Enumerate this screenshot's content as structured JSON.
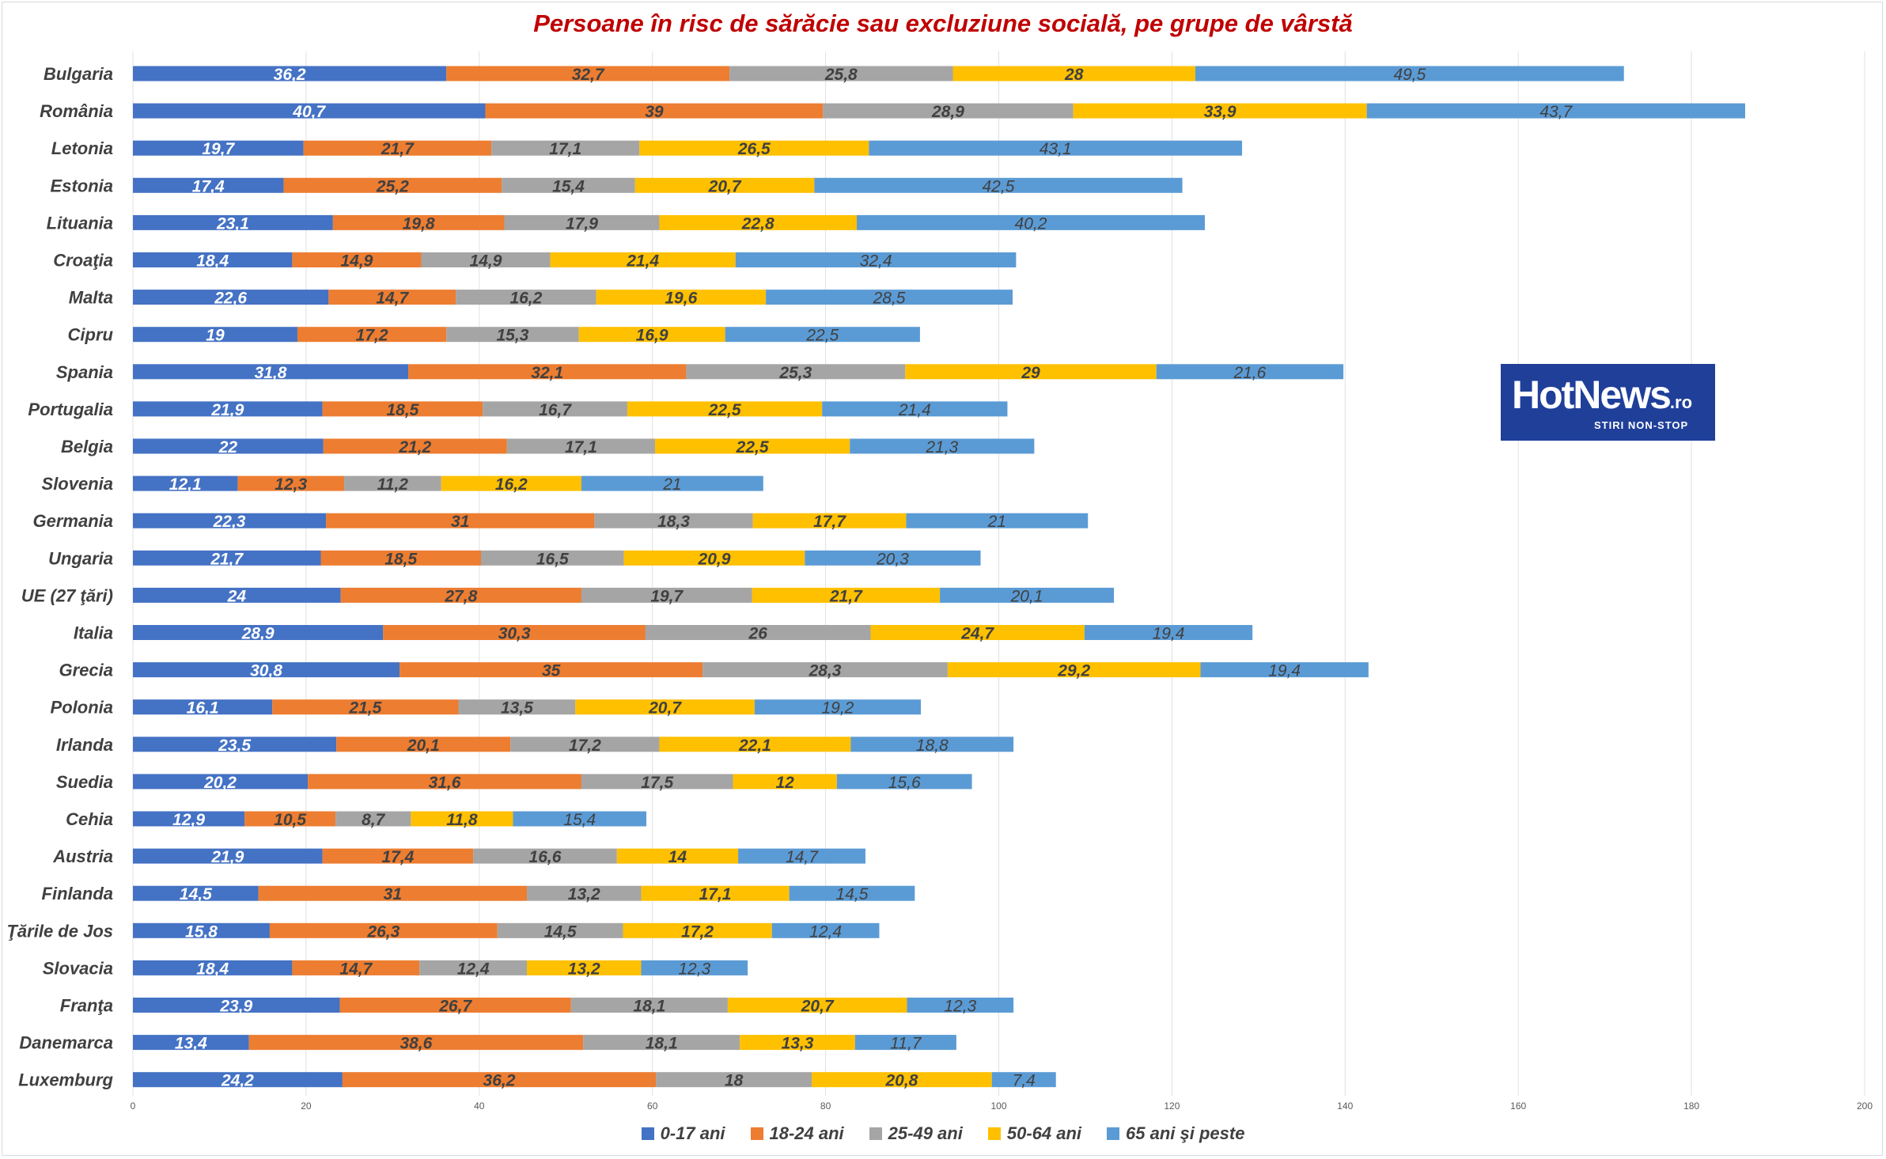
{
  "chart_data": {
    "type": "bar",
    "orientation": "horizontal",
    "stacked": true,
    "title": "Persoane în risc de sărăcie sau excluziune socială, pe grupe de vârstă",
    "xlim": [
      0,
      200
    ],
    "x_ticks": [
      "0",
      "20",
      "40",
      "60",
      "80",
      "100",
      "120",
      "140",
      "160",
      "180",
      "200"
    ],
    "grid": true,
    "legend_position": "bottom",
    "categories": [
      "Bulgaria",
      "România",
      "Letonia",
      "Estonia",
      "Lituania",
      "Croaţia",
      "Malta",
      "Cipru",
      "Spania",
      "Portugalia",
      "Belgia",
      "Slovenia",
      "Germania",
      "Ungaria",
      "UE (27 ţări)",
      "Italia",
      "Grecia",
      "Polonia",
      "Irlanda",
      "Suedia",
      "Cehia",
      "Austria",
      "Finlanda",
      "Ţările de Jos",
      "Slovacia",
      "Franţa",
      "Danemarca",
      "Luxemburg"
    ],
    "series": [
      {
        "name": "0-17 ani",
        "color": "#4472c4",
        "label_color": "#ffffff",
        "values": [
          36.2,
          40.7,
          19.7,
          17.4,
          23.1,
          18.4,
          22.6,
          19,
          31.8,
          21.9,
          22,
          12.1,
          22.3,
          21.7,
          24,
          28.9,
          30.8,
          16.1,
          23.5,
          20.2,
          12.9,
          21.9,
          14.5,
          15.8,
          18.4,
          23.9,
          13.4,
          24.2
        ],
        "labels": [
          "36,2",
          "40,7",
          "19,7",
          "17,4",
          "23,1",
          "18,4",
          "22,6",
          "19",
          "31,8",
          "21,9",
          "22",
          "12,1",
          "22,3",
          "21,7",
          "24",
          "28,9",
          "30,8",
          "16,1",
          "23,5",
          "20,2",
          "12,9",
          "21,9",
          "14,5",
          "15,8",
          "18,4",
          "23,9",
          "13,4",
          "24,2"
        ]
      },
      {
        "name": "18-24 ani",
        "color": "#ed7d31",
        "label_color": "#404040",
        "values": [
          32.7,
          39,
          21.7,
          25.2,
          19.8,
          14.9,
          14.7,
          17.2,
          32.1,
          18.5,
          21.2,
          12.3,
          31,
          18.5,
          27.8,
          30.3,
          35,
          21.5,
          20.1,
          31.6,
          10.5,
          17.4,
          31,
          26.3,
          14.7,
          26.7,
          38.6,
          36.2
        ],
        "labels": [
          "32,7",
          "39",
          "21,7",
          "25,2",
          "19,8",
          "14,9",
          "14,7",
          "17,2",
          "32,1",
          "18,5",
          "21,2",
          "12,3",
          "31",
          "18,5",
          "27,8",
          "30,3",
          "35",
          "21,5",
          "20,1",
          "31,6",
          "10,5",
          "17,4",
          "31",
          "26,3",
          "14,7",
          "26,7",
          "38,6",
          "36,2"
        ]
      },
      {
        "name": "25-49 ani",
        "color": "#a5a5a5",
        "label_color": "#404040",
        "values": [
          25.8,
          28.9,
          17.1,
          15.4,
          17.9,
          14.9,
          16.2,
          15.3,
          25.3,
          16.7,
          17.1,
          11.2,
          18.3,
          16.5,
          19.7,
          26,
          28.3,
          13.5,
          17.2,
          17.5,
          8.7,
          16.6,
          13.2,
          14.5,
          12.4,
          18.1,
          18.1,
          18
        ],
        "labels": [
          "25,8",
          "28,9",
          "17,1",
          "15,4",
          "17,9",
          "14,9",
          "16,2",
          "15,3",
          "25,3",
          "16,7",
          "17,1",
          "11,2",
          "18,3",
          "16,5",
          "19,7",
          "26",
          "28,3",
          "13,5",
          "17,2",
          "17,5",
          "8,7",
          "16,6",
          "13,2",
          "14,5",
          "12,4",
          "18,1",
          "18,1",
          "18"
        ]
      },
      {
        "name": "50-64 ani",
        "color": "#ffc000",
        "label_color": "#404040",
        "values": [
          28,
          33.9,
          26.5,
          20.7,
          22.8,
          21.4,
          19.6,
          16.9,
          29,
          22.5,
          22.5,
          16.2,
          17.7,
          20.9,
          21.7,
          24.7,
          29.2,
          20.7,
          22.1,
          12,
          11.8,
          14,
          17.1,
          17.2,
          13.2,
          20.7,
          13.3,
          20.8
        ],
        "labels": [
          "28",
          "33,9",
          "26,5",
          "20,7",
          "22,8",
          "21,4",
          "19,6",
          "16,9",
          "29",
          "22,5",
          "22,5",
          "16,2",
          "17,7",
          "20,9",
          "21,7",
          "24,7",
          "29,2",
          "20,7",
          "22,1",
          "12",
          "11,8",
          "14",
          "17,1",
          "17,2",
          "13,2",
          "20,7",
          "13,3",
          "20,8"
        ]
      },
      {
        "name": "65 ani şi peste",
        "color": "#5b9bd5",
        "label_color": "#404040",
        "values": [
          49.5,
          43.7,
          43.1,
          42.5,
          40.2,
          32.4,
          28.5,
          22.5,
          21.6,
          21.4,
          21.3,
          21,
          21,
          20.3,
          20.1,
          19.4,
          19.4,
          19.2,
          18.8,
          15.6,
          15.4,
          14.7,
          14.5,
          12.4,
          12.3,
          12.3,
          11.7,
          7.4
        ],
        "labels": [
          "49,5",
          "43,7",
          "43,1",
          "42,5",
          "40,2",
          "32,4",
          "28,5",
          "22,5",
          "21,6",
          "21,4",
          "21,3",
          "21",
          "21",
          "20,3",
          "20,1",
          "19,4",
          "19,4",
          "19,2",
          "18,8",
          "15,6",
          "15,4",
          "14,7",
          "14,5",
          "12,4",
          "12,3",
          "12,3",
          "11,7",
          "7,4"
        ]
      }
    ]
  },
  "logo": {
    "text": "HotNews",
    "suffix": ".ro",
    "tagline": "STIRI NON-STOP"
  }
}
